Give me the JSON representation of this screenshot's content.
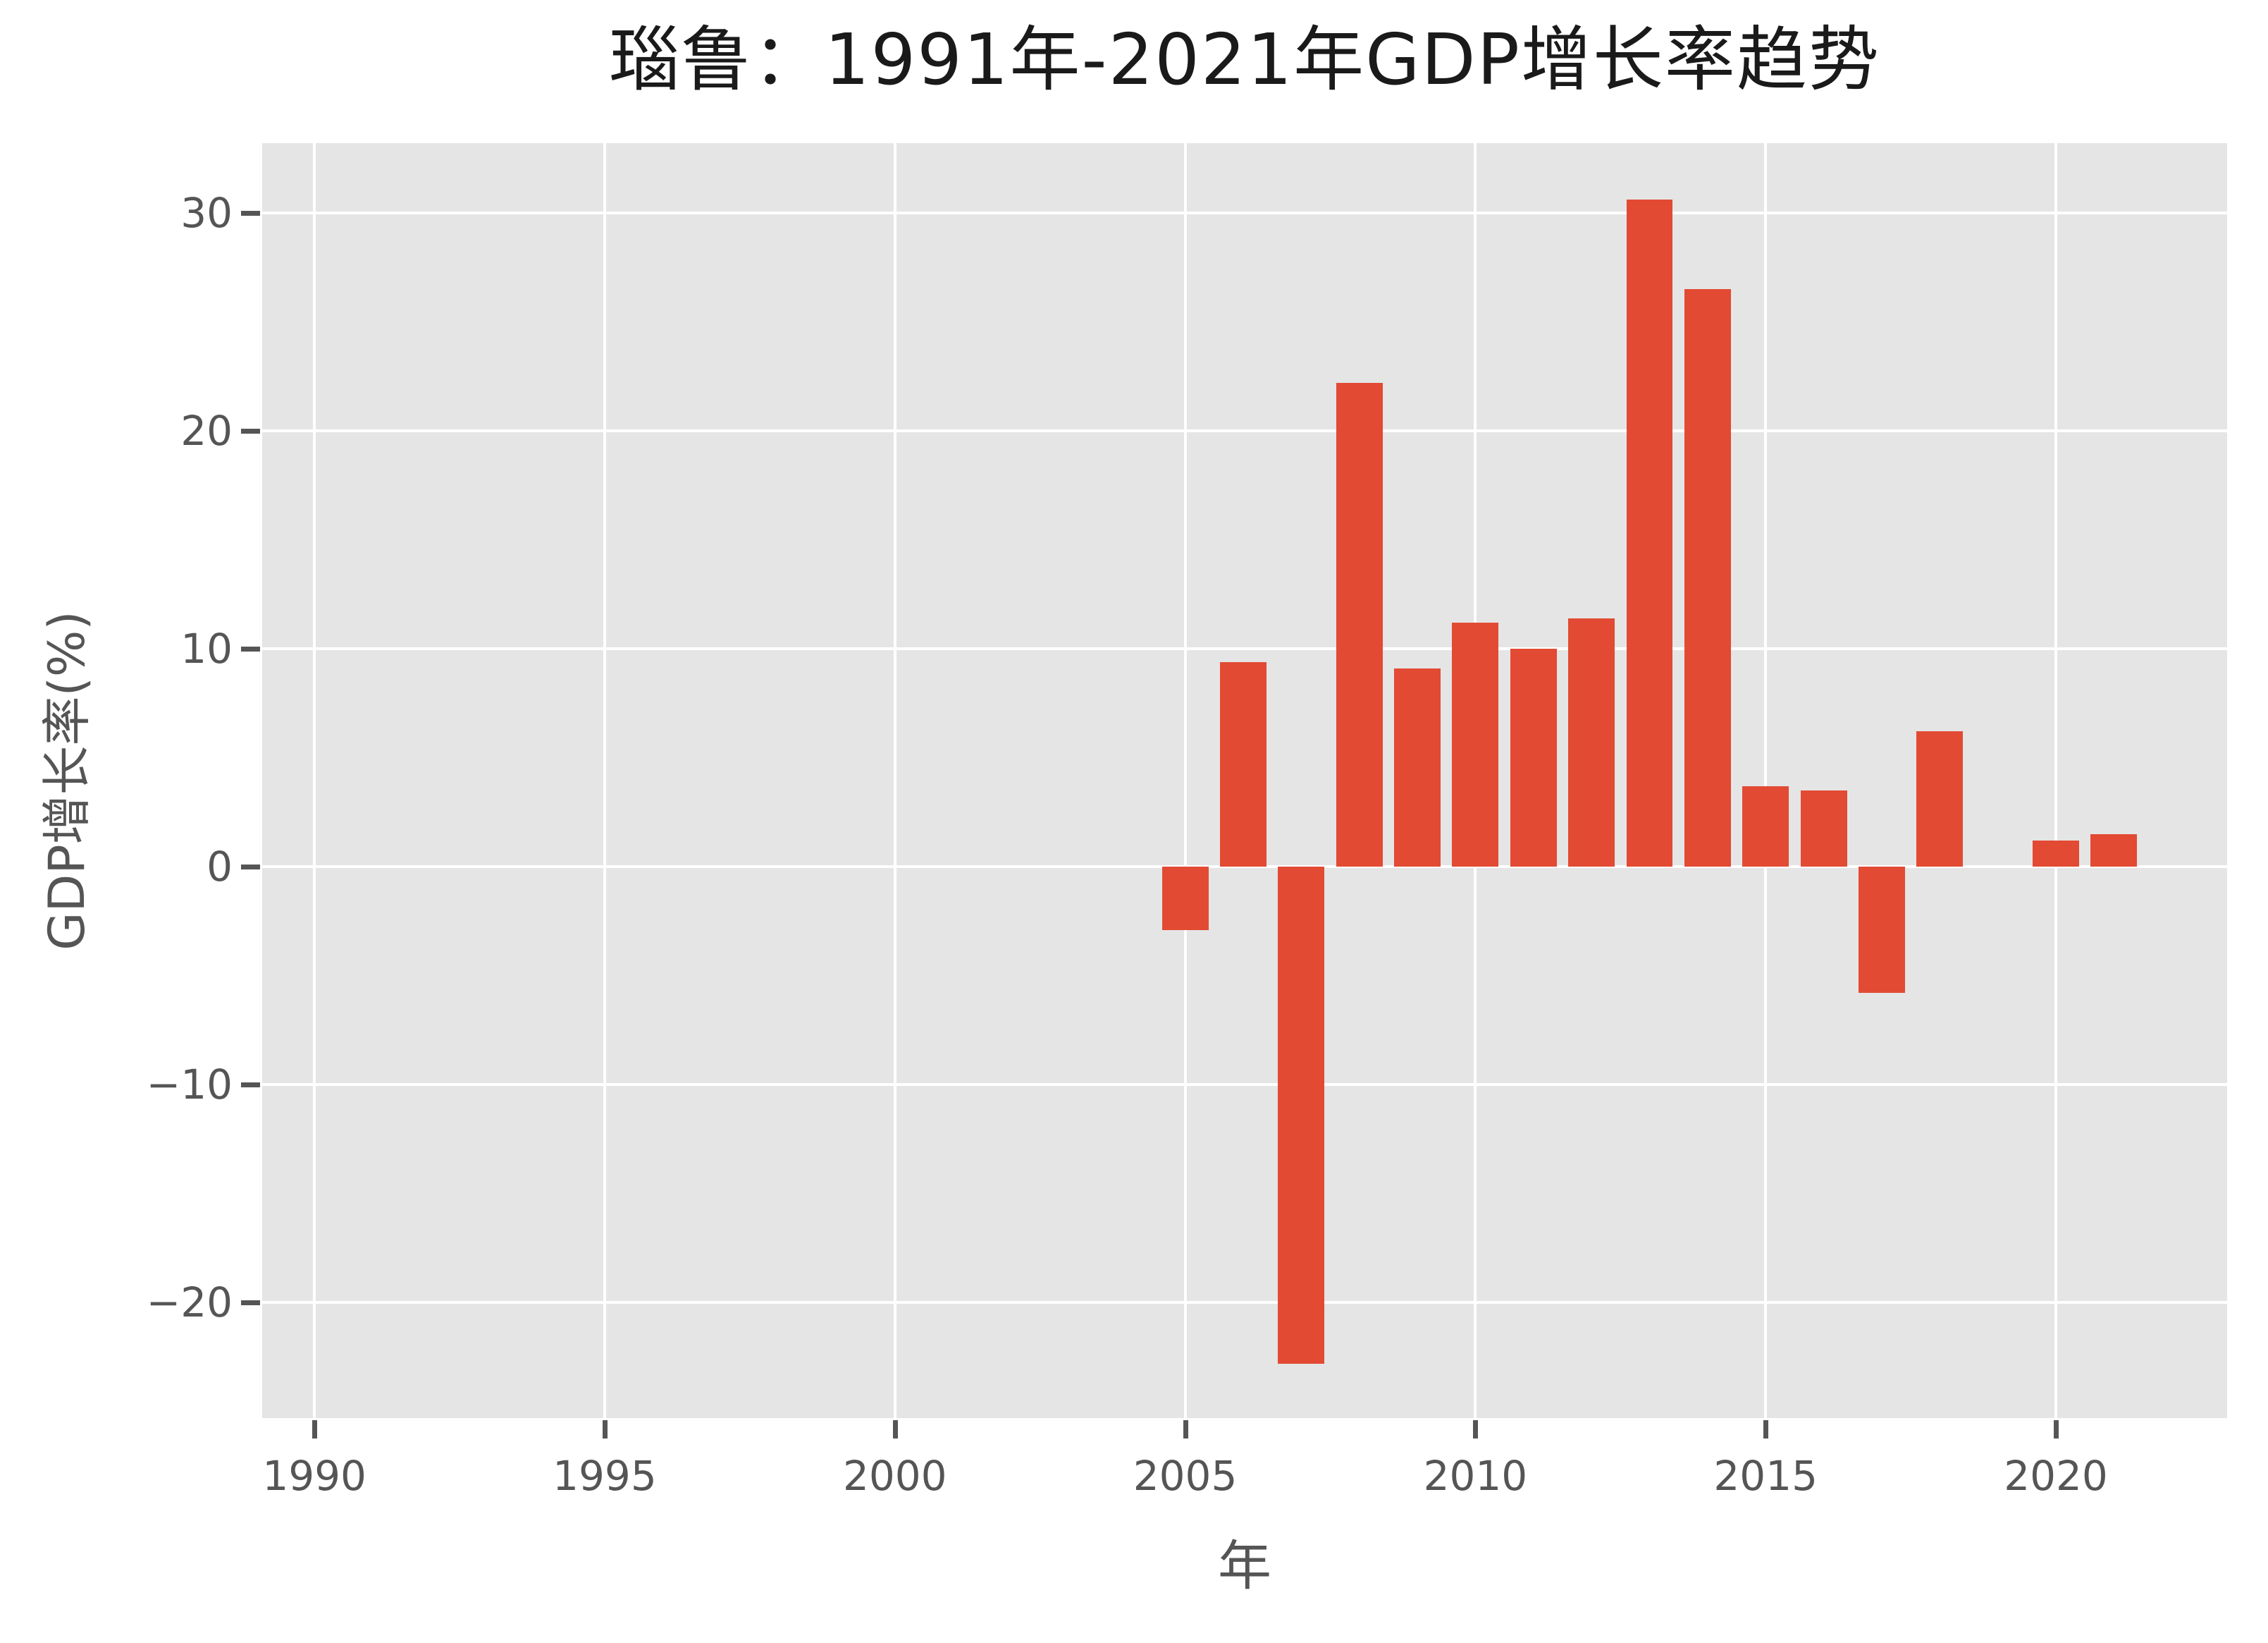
{
  "chart_data": {
    "type": "bar",
    "title": "瑙鲁：1991年-2021年GDP增长率趋势",
    "xlabel": "年",
    "ylabel": "GDP增长率(%)",
    "x": [
      1991,
      1992,
      1993,
      1994,
      1995,
      1996,
      1997,
      1998,
      1999,
      2000,
      2001,
      2002,
      2003,
      2004,
      2005,
      2006,
      2007,
      2008,
      2009,
      2010,
      2011,
      2012,
      2013,
      2014,
      2015,
      2016,
      2017,
      2018,
      2019,
      2020,
      2021
    ],
    "values": [
      null,
      null,
      null,
      null,
      null,
      null,
      null,
      null,
      null,
      null,
      null,
      null,
      null,
      null,
      -2.9,
      9.4,
      -22.8,
      22.2,
      9.1,
      11.2,
      10.0,
      11.4,
      30.6,
      26.5,
      3.7,
      3.5,
      -5.8,
      6.2,
      null,
      1.2,
      1.5
    ],
    "x_ticks": [
      1990,
      1995,
      2000,
      2005,
      2010,
      2015,
      2020
    ],
    "x_tick_labels": [
      "1990",
      "1995",
      "2000",
      "2005",
      "2010",
      "2015",
      "2020"
    ],
    "y_ticks": [
      30,
      20,
      10,
      0,
      -10,
      -20
    ],
    "y_tick_labels": [
      "30",
      "20",
      "10",
      "0",
      "−10",
      "−20"
    ],
    "xlim": [
      1989.1,
      2022.95
    ],
    "ylim": [
      -25.3,
      33.2
    ],
    "bar_width_years": 0.8,
    "grid": true,
    "legend": false,
    "colors": {
      "bar": "#E24A33",
      "panel_background": "#E5E5E5",
      "gridline": "#FFFFFF",
      "tick_text": "#555555",
      "axis_label_text": "#555555",
      "title_text": "#1a1a1a",
      "figure_background": "#FFFFFF"
    }
  }
}
